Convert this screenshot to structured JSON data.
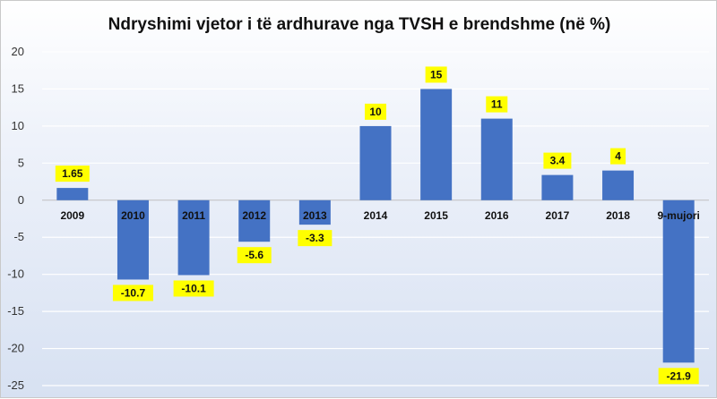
{
  "chart_data": {
    "type": "bar",
    "title": "Ndryshimi vjetor i të ardhurave nga TVSH e brendshme (në %)",
    "categories": [
      "2009",
      "2010",
      "2011",
      "2012",
      "2013",
      "2014",
      "2015",
      "2016",
      "2017",
      "2018",
      "9-mujori"
    ],
    "values": [
      1.65,
      -10.7,
      -10.1,
      -5.6,
      -3.3,
      10,
      15,
      11,
      3.4,
      4,
      -21.9
    ],
    "data_labels": [
      "1.65",
      "-10.7",
      "-10.1",
      "-5.6",
      "-3.3",
      "10",
      "15",
      "11",
      "3.4",
      "4",
      "-21.9"
    ],
    "ylim": [
      -25,
      20
    ],
    "yticks": [
      "20",
      "15",
      "10",
      "5",
      "0",
      "-5",
      "-10",
      "-15",
      "-20",
      "-25"
    ],
    "ytick_values": [
      20,
      15,
      10,
      5,
      0,
      -5,
      -10,
      -15,
      -20,
      -25
    ],
    "grid": true,
    "bar_color": "#4472c4",
    "label_bg": "#ffff00",
    "grid_color": "#ffffff"
  }
}
